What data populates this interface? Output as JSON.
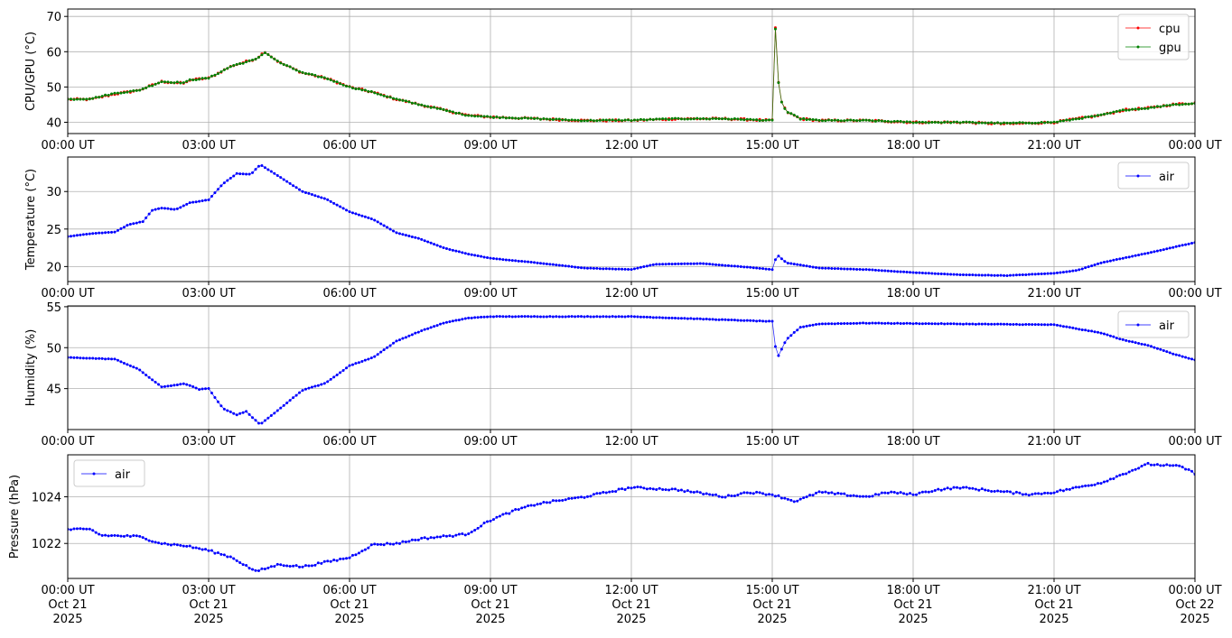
{
  "chart_data": [
    {
      "type": "line",
      "ylabel": "CPU/GPU (°C)",
      "ylim": [
        36.8,
        72.1
      ],
      "yticks": [
        40,
        50,
        60,
        70
      ],
      "xlim_hours": [
        0,
        24
      ],
      "xtick_labels": [
        "00:00 UT",
        "03:00 UT",
        "06:00 UT",
        "09:00 UT",
        "12:00 UT",
        "15:00 UT",
        "18:00 UT",
        "21:00 UT",
        "00:00 UT"
      ],
      "grid": true,
      "legend_position": "top-right",
      "series": [
        {
          "name": "cpu",
          "color": "#ff0000",
          "noise": 0.5,
          "points": [
            [
              0,
              46.5
            ],
            [
              0.5,
              46.5
            ],
            [
              1,
              48
            ],
            [
              1.5,
              49
            ],
            [
              2,
              51.5
            ],
            [
              2.5,
              51
            ],
            [
              2.6,
              52
            ],
            [
              3,
              52.5
            ],
            [
              3.5,
              56
            ],
            [
              4,
              58
            ],
            [
              4.2,
              60
            ],
            [
              4.5,
              57
            ],
            [
              5,
              54
            ],
            [
              5.5,
              52.5
            ],
            [
              6,
              50
            ],
            [
              6.5,
              48.5
            ],
            [
              7,
              46.5
            ],
            [
              7.5,
              45
            ],
            [
              8,
              43.5
            ],
            [
              8.5,
              42
            ],
            [
              9,
              41.5
            ],
            [
              10,
              41
            ],
            [
              11,
              40.5
            ],
            [
              12,
              40.5
            ],
            [
              13,
              41
            ],
            [
              14,
              41
            ],
            [
              15,
              40.5
            ],
            [
              15.05,
              70
            ],
            [
              15.1,
              60
            ],
            [
              15.15,
              47
            ],
            [
              15.3,
              43
            ],
            [
              15.6,
              41
            ],
            [
              16,
              40.5
            ],
            [
              17,
              40.5
            ],
            [
              18,
              40
            ],
            [
              19,
              40
            ],
            [
              20,
              39.5
            ],
            [
              21,
              40
            ],
            [
              21.5,
              41
            ],
            [
              22,
              42
            ],
            [
              22.5,
              43.5
            ],
            [
              23,
              44
            ],
            [
              23.5,
              45
            ],
            [
              24,
              45.5
            ]
          ]
        },
        {
          "name": "gpu",
          "color": "#008000",
          "noise": 0.3,
          "points": [
            [
              0,
              46.5
            ],
            [
              0.5,
              46.7
            ],
            [
              1,
              48.2
            ],
            [
              1.5,
              49
            ],
            [
              2,
              51.5
            ],
            [
              2.5,
              51.2
            ],
            [
              2.6,
              52
            ],
            [
              3,
              52.5
            ],
            [
              3.5,
              56
            ],
            [
              4,
              57.8
            ],
            [
              4.2,
              59.8
            ],
            [
              4.5,
              57
            ],
            [
              5,
              54
            ],
            [
              5.5,
              52.5
            ],
            [
              6,
              50
            ],
            [
              6.5,
              48.5
            ],
            [
              7,
              46.5
            ],
            [
              7.5,
              45
            ],
            [
              8,
              43.5
            ],
            [
              8.5,
              42
            ],
            [
              9,
              41.5
            ],
            [
              10,
              41
            ],
            [
              11,
              40.5
            ],
            [
              12,
              40.6
            ],
            [
              13,
              41
            ],
            [
              14,
              41
            ],
            [
              15,
              40.5
            ],
            [
              15.05,
              69.5
            ],
            [
              15.1,
              60
            ],
            [
              15.15,
              47
            ],
            [
              15.3,
              43
            ],
            [
              15.6,
              41
            ],
            [
              16,
              40.5
            ],
            [
              17,
              40.5
            ],
            [
              18,
              40
            ],
            [
              19,
              40
            ],
            [
              20,
              39.7
            ],
            [
              21,
              40
            ],
            [
              21.5,
              41
            ],
            [
              22,
              42
            ],
            [
              22.5,
              43.5
            ],
            [
              23,
              44
            ],
            [
              23.5,
              45
            ],
            [
              24,
              45.3
            ]
          ]
        }
      ]
    },
    {
      "type": "line",
      "ylabel": "Temperature (°C)",
      "ylim": [
        18.0,
        34.6
      ],
      "yticks": [
        20,
        25,
        30
      ],
      "xlim_hours": [
        0,
        24
      ],
      "xtick_labels": [
        "00:00 UT",
        "03:00 UT",
        "06:00 UT",
        "09:00 UT",
        "12:00 UT",
        "15:00 UT",
        "18:00 UT",
        "21:00 UT",
        "00:00 UT"
      ],
      "grid": true,
      "legend_position": "top-right",
      "series": [
        {
          "name": "air",
          "color": "#0000ff",
          "noise": 0.03,
          "points": [
            [
              0,
              24.0
            ],
            [
              0.5,
              24.4
            ],
            [
              1,
              24.6
            ],
            [
              1.3,
              25.6
            ],
            [
              1.6,
              26
            ],
            [
              1.8,
              27.5
            ],
            [
              2,
              27.8
            ],
            [
              2.3,
              27.6
            ],
            [
              2.6,
              28.5
            ],
            [
              3,
              28.9
            ],
            [
              3.3,
              31
            ],
            [
              3.6,
              32.4
            ],
            [
              3.9,
              32.3
            ],
            [
              4.1,
              33.6
            ],
            [
              4.5,
              32
            ],
            [
              5,
              30
            ],
            [
              5.5,
              29
            ],
            [
              6,
              27.3
            ],
            [
              6.5,
              26.3
            ],
            [
              7,
              24.5
            ],
            [
              7.5,
              23.7
            ],
            [
              8,
              22.5
            ],
            [
              8.5,
              21.7
            ],
            [
              9,
              21.1
            ],
            [
              10,
              20.5
            ],
            [
              11,
              19.8
            ],
            [
              12,
              19.6
            ],
            [
              12.5,
              20.3
            ],
            [
              13.5,
              20.4
            ],
            [
              14.5,
              19.9
            ],
            [
              15,
              19.6
            ],
            [
              15.1,
              21.6
            ],
            [
              15.3,
              20.5
            ],
            [
              16,
              19.8
            ],
            [
              17,
              19.6
            ],
            [
              18,
              19.2
            ],
            [
              19,
              18.9
            ],
            [
              20,
              18.8
            ],
            [
              21,
              19.1
            ],
            [
              21.5,
              19.5
            ],
            [
              22,
              20.5
            ],
            [
              23,
              21.8
            ],
            [
              23.5,
              22.5
            ],
            [
              24,
              23.2
            ]
          ]
        }
      ]
    },
    {
      "type": "line",
      "ylabel": "Humidity (%)",
      "ylim": [
        40.0,
        55.1
      ],
      "yticks": [
        45,
        50,
        55
      ],
      "xlim_hours": [
        0,
        24
      ],
      "xtick_labels": [
        "00:00 UT",
        "03:00 UT",
        "06:00 UT",
        "09:00 UT",
        "12:00 UT",
        "15:00 UT",
        "18:00 UT",
        "21:00 UT",
        "00:00 UT"
      ],
      "grid": true,
      "legend_position": "top-right",
      "series": [
        {
          "name": "air",
          "color": "#0000ff",
          "noise": 0.05,
          "points": [
            [
              0,
              48.8
            ],
            [
              1,
              48.6
            ],
            [
              1.5,
              47.4
            ],
            [
              2,
              45.2
            ],
            [
              2.5,
              45.6
            ],
            [
              2.8,
              44.9
            ],
            [
              3,
              45.0
            ],
            [
              3.3,
              42.6
            ],
            [
              3.6,
              41.8
            ],
            [
              3.8,
              42.2
            ],
            [
              4.1,
              40.6
            ],
            [
              4.5,
              42.5
            ],
            [
              5,
              44.8
            ],
            [
              5.5,
              45.7
            ],
            [
              6,
              47.8
            ],
            [
              6.5,
              48.8
            ],
            [
              7,
              50.8
            ],
            [
              7.5,
              52
            ],
            [
              8,
              53
            ],
            [
              8.5,
              53.6
            ],
            [
              9,
              53.8
            ],
            [
              12,
              53.8
            ],
            [
              14,
              53.4
            ],
            [
              15,
              53.2
            ],
            [
              15.1,
              48.6
            ],
            [
              15.3,
              51
            ],
            [
              15.6,
              52.5
            ],
            [
              16,
              52.9
            ],
            [
              17,
              53.0
            ],
            [
              19,
              52.9
            ],
            [
              21,
              52.8
            ],
            [
              22,
              51.8
            ],
            [
              22.5,
              50.9
            ],
            [
              23,
              50.3
            ],
            [
              23.5,
              49.3
            ],
            [
              24,
              48.5
            ]
          ]
        }
      ]
    },
    {
      "type": "line",
      "ylabel": "Pressure (hPa)",
      "ylim": [
        1020.5,
        1025.8
      ],
      "yticks": [
        1022,
        1024
      ],
      "xlim_hours": [
        0,
        24
      ],
      "xtick_labels": [
        "00:00 UT",
        "03:00 UT",
        "06:00 UT",
        "09:00 UT",
        "12:00 UT",
        "15:00 UT",
        "18:00 UT",
        "21:00 UT",
        "00:00 UT"
      ],
      "xtick_dates": [
        "Oct 21",
        "Oct 21",
        "Oct 21",
        "Oct 21",
        "Oct 21",
        "Oct 21",
        "Oct 21",
        "Oct 21",
        "Oct 22"
      ],
      "xtick_years": [
        "2025",
        "2025",
        "2025",
        "2025",
        "2025",
        "2025",
        "2025",
        "2025",
        "2025"
      ],
      "grid": true,
      "legend_position": "top-left",
      "series": [
        {
          "name": "air",
          "color": "#0000ff",
          "noise": 0.08,
          "points": [
            [
              0,
              1022.6
            ],
            [
              0.5,
              1022.6
            ],
            [
              0.7,
              1022.35
            ],
            [
              1.5,
              1022.3
            ],
            [
              2,
              1022.0
            ],
            [
              2.5,
              1021.9
            ],
            [
              3,
              1021.7
            ],
            [
              3.5,
              1021.4
            ],
            [
              4,
              1020.8
            ],
            [
              4.5,
              1021.1
            ],
            [
              5,
              1021.0
            ],
            [
              5.5,
              1021.2
            ],
            [
              6,
              1021.4
            ],
            [
              6.5,
              1021.95
            ],
            [
              7,
              1022.0
            ],
            [
              7.5,
              1022.2
            ],
            [
              8,
              1022.3
            ],
            [
              8.5,
              1022.4
            ],
            [
              9,
              1023.0
            ],
            [
              9.5,
              1023.4
            ],
            [
              10,
              1023.7
            ],
            [
              11,
              1024.0
            ],
            [
              12,
              1024.4
            ],
            [
              13,
              1024.3
            ],
            [
              14,
              1024.0
            ],
            [
              14.5,
              1024.2
            ],
            [
              15,
              1024.1
            ],
            [
              15.5,
              1023.8
            ],
            [
              16,
              1024.2
            ],
            [
              17,
              1024.0
            ],
            [
              17.5,
              1024.2
            ],
            [
              18,
              1024.1
            ],
            [
              18.5,
              1024.3
            ],
            [
              19,
              1024.4
            ],
            [
              20,
              1024.2
            ],
            [
              20.5,
              1024.1
            ],
            [
              21,
              1024.2
            ],
            [
              22,
              1024.6
            ],
            [
              22.5,
              1025.0
            ],
            [
              23,
              1025.4
            ],
            [
              23.7,
              1025.3
            ],
            [
              24,
              1025.0
            ]
          ]
        }
      ]
    }
  ]
}
